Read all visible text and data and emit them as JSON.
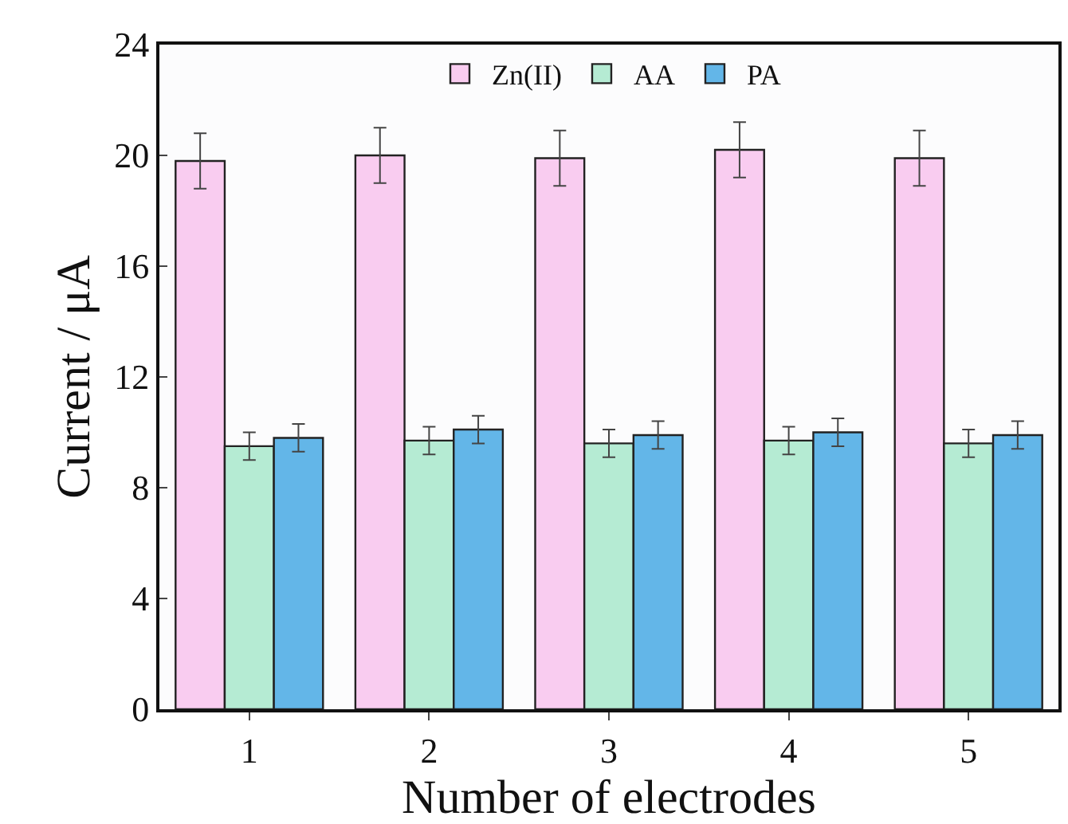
{
  "chart_data": {
    "type": "bar",
    "xlabel": "Number of electrodes",
    "ylabel": "Current / μA",
    "categories": [
      "1",
      "2",
      "3",
      "4",
      "5"
    ],
    "series": [
      {
        "name": "Zn(II)",
        "color": "#f9ccf0",
        "values": [
          19.8,
          20.0,
          19.9,
          20.2,
          19.9
        ],
        "errors": [
          1.0,
          1.0,
          1.0,
          1.0,
          1.0
        ]
      },
      {
        "name": "AA",
        "color": "#b5ebd3",
        "values": [
          9.5,
          9.7,
          9.6,
          9.7,
          9.6
        ],
        "errors": [
          0.5,
          0.5,
          0.5,
          0.5,
          0.5
        ]
      },
      {
        "name": "PA",
        "color": "#63b6e8",
        "values": [
          9.8,
          10.1,
          9.9,
          10.0,
          9.9
        ],
        "errors": [
          0.5,
          0.5,
          0.5,
          0.5,
          0.5
        ]
      }
    ],
    "ylim": [
      0,
      24
    ],
    "yticks": [
      0,
      4,
      8,
      12,
      16,
      20,
      24
    ],
    "legend": "top"
  }
}
